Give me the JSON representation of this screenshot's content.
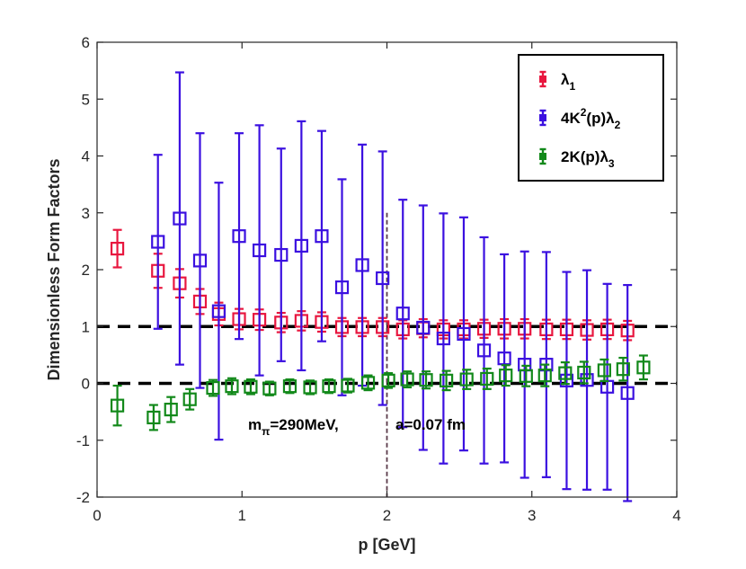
{
  "chart_data": {
    "type": "scatter",
    "xlabel": "p [GeV]",
    "ylabel": "Dimensionless Form Factors",
    "xlim": [
      0,
      4
    ],
    "ylim": [
      -2,
      6
    ],
    "xticks": [
      0,
      1,
      2,
      3,
      4
    ],
    "yticks": [
      -2,
      -1,
      0,
      1,
      2,
      3,
      4,
      5,
      6
    ],
    "reference_lines": [
      1,
      0
    ],
    "vertical_marker_x": 2.0,
    "annotation_left": {
      "text": "m",
      "sub": "π",
      "rest": "=290MeV,"
    },
    "annotation_right": "a=0.07 fm",
    "legend_position": "top-right",
    "series": [
      {
        "name": "λ",
        "legend_sub": "1",
        "legend_sup": "",
        "color": "#e8173f",
        "points": [
          [
            0.14,
            2.37,
            0.33
          ],
          [
            0.42,
            1.98,
            0.3
          ],
          [
            0.57,
            1.76,
            0.25
          ],
          [
            0.71,
            1.44,
            0.22
          ],
          [
            0.84,
            1.22,
            0.2
          ],
          [
            0.98,
            1.13,
            0.18
          ],
          [
            1.12,
            1.12,
            0.18
          ],
          [
            1.27,
            1.07,
            0.17
          ],
          [
            1.41,
            1.1,
            0.17
          ],
          [
            1.55,
            1.08,
            0.17
          ],
          [
            1.69,
            0.99,
            0.16
          ],
          [
            1.83,
            0.99,
            0.16
          ],
          [
            1.97,
            0.99,
            0.16
          ],
          [
            2.11,
            0.95,
            0.16
          ],
          [
            2.25,
            0.97,
            0.16
          ],
          [
            2.39,
            0.95,
            0.16
          ],
          [
            2.53,
            0.95,
            0.16
          ],
          [
            2.67,
            0.96,
            0.16
          ],
          [
            2.81,
            0.96,
            0.17
          ],
          [
            2.95,
            0.96,
            0.17
          ],
          [
            3.1,
            0.95,
            0.17
          ],
          [
            3.24,
            0.95,
            0.17
          ],
          [
            3.38,
            0.94,
            0.17
          ],
          [
            3.52,
            0.95,
            0.17
          ],
          [
            3.66,
            0.93,
            0.17
          ]
        ]
      },
      {
        "name": "4K",
        "legend_sup": "2",
        "legend_rest": "(p)λ",
        "legend_sub": "2",
        "color": "#3b10e0",
        "points": [
          [
            0.42,
            2.49,
            1.53
          ],
          [
            0.57,
            2.9,
            2.57
          ],
          [
            0.71,
            2.16,
            2.24
          ],
          [
            0.84,
            1.27,
            2.26
          ],
          [
            0.98,
            2.59,
            1.81
          ],
          [
            1.12,
            2.34,
            2.2
          ],
          [
            1.27,
            2.26,
            1.87
          ],
          [
            1.41,
            2.42,
            2.19
          ],
          [
            1.55,
            2.59,
            1.85
          ],
          [
            1.69,
            1.69,
            1.9
          ],
          [
            1.83,
            2.08,
            2.12
          ],
          [
            1.97,
            1.85,
            2.23
          ],
          [
            2.11,
            1.23,
            2.0
          ],
          [
            2.25,
            0.98,
            2.15
          ],
          [
            2.39,
            0.79,
            2.2
          ],
          [
            2.53,
            0.87,
            2.05
          ],
          [
            2.67,
            0.58,
            1.99
          ],
          [
            2.81,
            0.44,
            1.83
          ],
          [
            2.95,
            0.33,
            1.99
          ],
          [
            3.1,
            0.33,
            1.98
          ],
          [
            3.24,
            0.05,
            1.91
          ],
          [
            3.38,
            0.06,
            1.93
          ],
          [
            3.52,
            -0.06,
            1.81
          ],
          [
            3.66,
            -0.17,
            1.9
          ]
        ]
      },
      {
        "name": "2K(p)λ",
        "legend_sub": "3",
        "legend_sup": "",
        "color": "#12891a",
        "points": [
          [
            0.14,
            -0.39,
            0.35
          ],
          [
            0.39,
            -0.6,
            0.22
          ],
          [
            0.51,
            -0.46,
            0.22
          ],
          [
            0.64,
            -0.28,
            0.18
          ],
          [
            0.8,
            -0.08,
            0.14
          ],
          [
            0.93,
            -0.05,
            0.14
          ],
          [
            1.06,
            -0.06,
            0.13
          ],
          [
            1.19,
            -0.09,
            0.12
          ],
          [
            1.33,
            -0.05,
            0.12
          ],
          [
            1.47,
            -0.07,
            0.12
          ],
          [
            1.6,
            -0.05,
            0.12
          ],
          [
            1.73,
            -0.04,
            0.12
          ],
          [
            1.87,
            0.01,
            0.13
          ],
          [
            2.01,
            0.05,
            0.13
          ],
          [
            2.14,
            0.07,
            0.14
          ],
          [
            2.27,
            0.06,
            0.15
          ],
          [
            2.41,
            0.05,
            0.17
          ],
          [
            2.55,
            0.07,
            0.17
          ],
          [
            2.69,
            0.08,
            0.18
          ],
          [
            2.82,
            0.14,
            0.18
          ],
          [
            2.96,
            0.13,
            0.18
          ],
          [
            3.09,
            0.14,
            0.19
          ],
          [
            3.23,
            0.18,
            0.19
          ],
          [
            3.36,
            0.19,
            0.19
          ],
          [
            3.5,
            0.23,
            0.19
          ],
          [
            3.63,
            0.25,
            0.2
          ],
          [
            3.77,
            0.28,
            0.21
          ]
        ]
      }
    ]
  }
}
